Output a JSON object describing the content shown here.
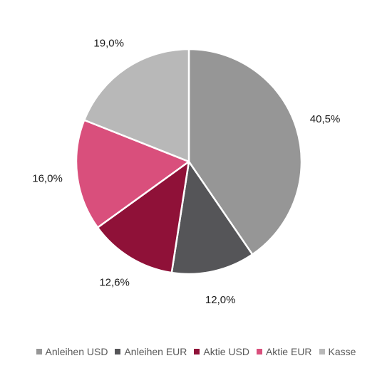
{
  "chart_data": {
    "type": "pie",
    "title": "",
    "categories": [
      "Anleihen USD",
      "Anleihen EUR",
      "Aktie USD",
      "Aktie EUR",
      "Kasse"
    ],
    "values": [
      40.5,
      12.0,
      12.6,
      16.0,
      19.0
    ],
    "labels": [
      "40,5%",
      "12,0%",
      "12,6%",
      "16,0%",
      "19,0%"
    ],
    "colors": [
      "#969696",
      "#555558",
      "#8f1138",
      "#d94f7c",
      "#b8b8b8"
    ],
    "start_angle": "12 o'clock",
    "direction": "clockwise",
    "legend_position": "bottom"
  }
}
